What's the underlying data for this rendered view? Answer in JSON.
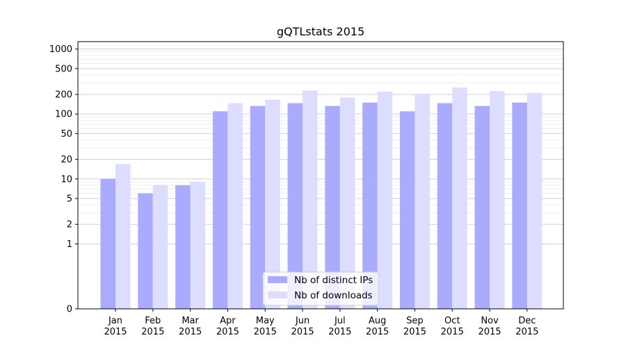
{
  "chart_data": {
    "type": "bar",
    "title": "gQTLstats 2015",
    "xlabel": "",
    "ylabel": "",
    "yscale": "symlog",
    "ylim": [
      0,
      1300
    ],
    "yticks": [
      0,
      1,
      2,
      5,
      10,
      20,
      50,
      100,
      200,
      500,
      1000
    ],
    "grid": true,
    "legend_position": "bottom-center",
    "categories": [
      [
        "Jan",
        "2015"
      ],
      [
        "Feb",
        "2015"
      ],
      [
        "Mar",
        "2015"
      ],
      [
        "Apr",
        "2015"
      ],
      [
        "May",
        "2015"
      ],
      [
        "Jun",
        "2015"
      ],
      [
        "Jul",
        "2015"
      ],
      [
        "Aug",
        "2015"
      ],
      [
        "Sep",
        "2015"
      ],
      [
        "Oct",
        "2015"
      ],
      [
        "Nov",
        "2015"
      ],
      [
        "Dec",
        "2015"
      ]
    ],
    "series": [
      {
        "name": "Nb of distinct IPs",
        "color": "#aaaaff",
        "values": [
          10,
          6,
          8,
          110,
          133,
          147,
          133,
          150,
          110,
          147,
          133,
          150
        ]
      },
      {
        "name": "Nb of downloads",
        "color": "#ddddff",
        "values": [
          17,
          8,
          9,
          147,
          166,
          230,
          180,
          220,
          205,
          255,
          225,
          210
        ]
      }
    ]
  }
}
